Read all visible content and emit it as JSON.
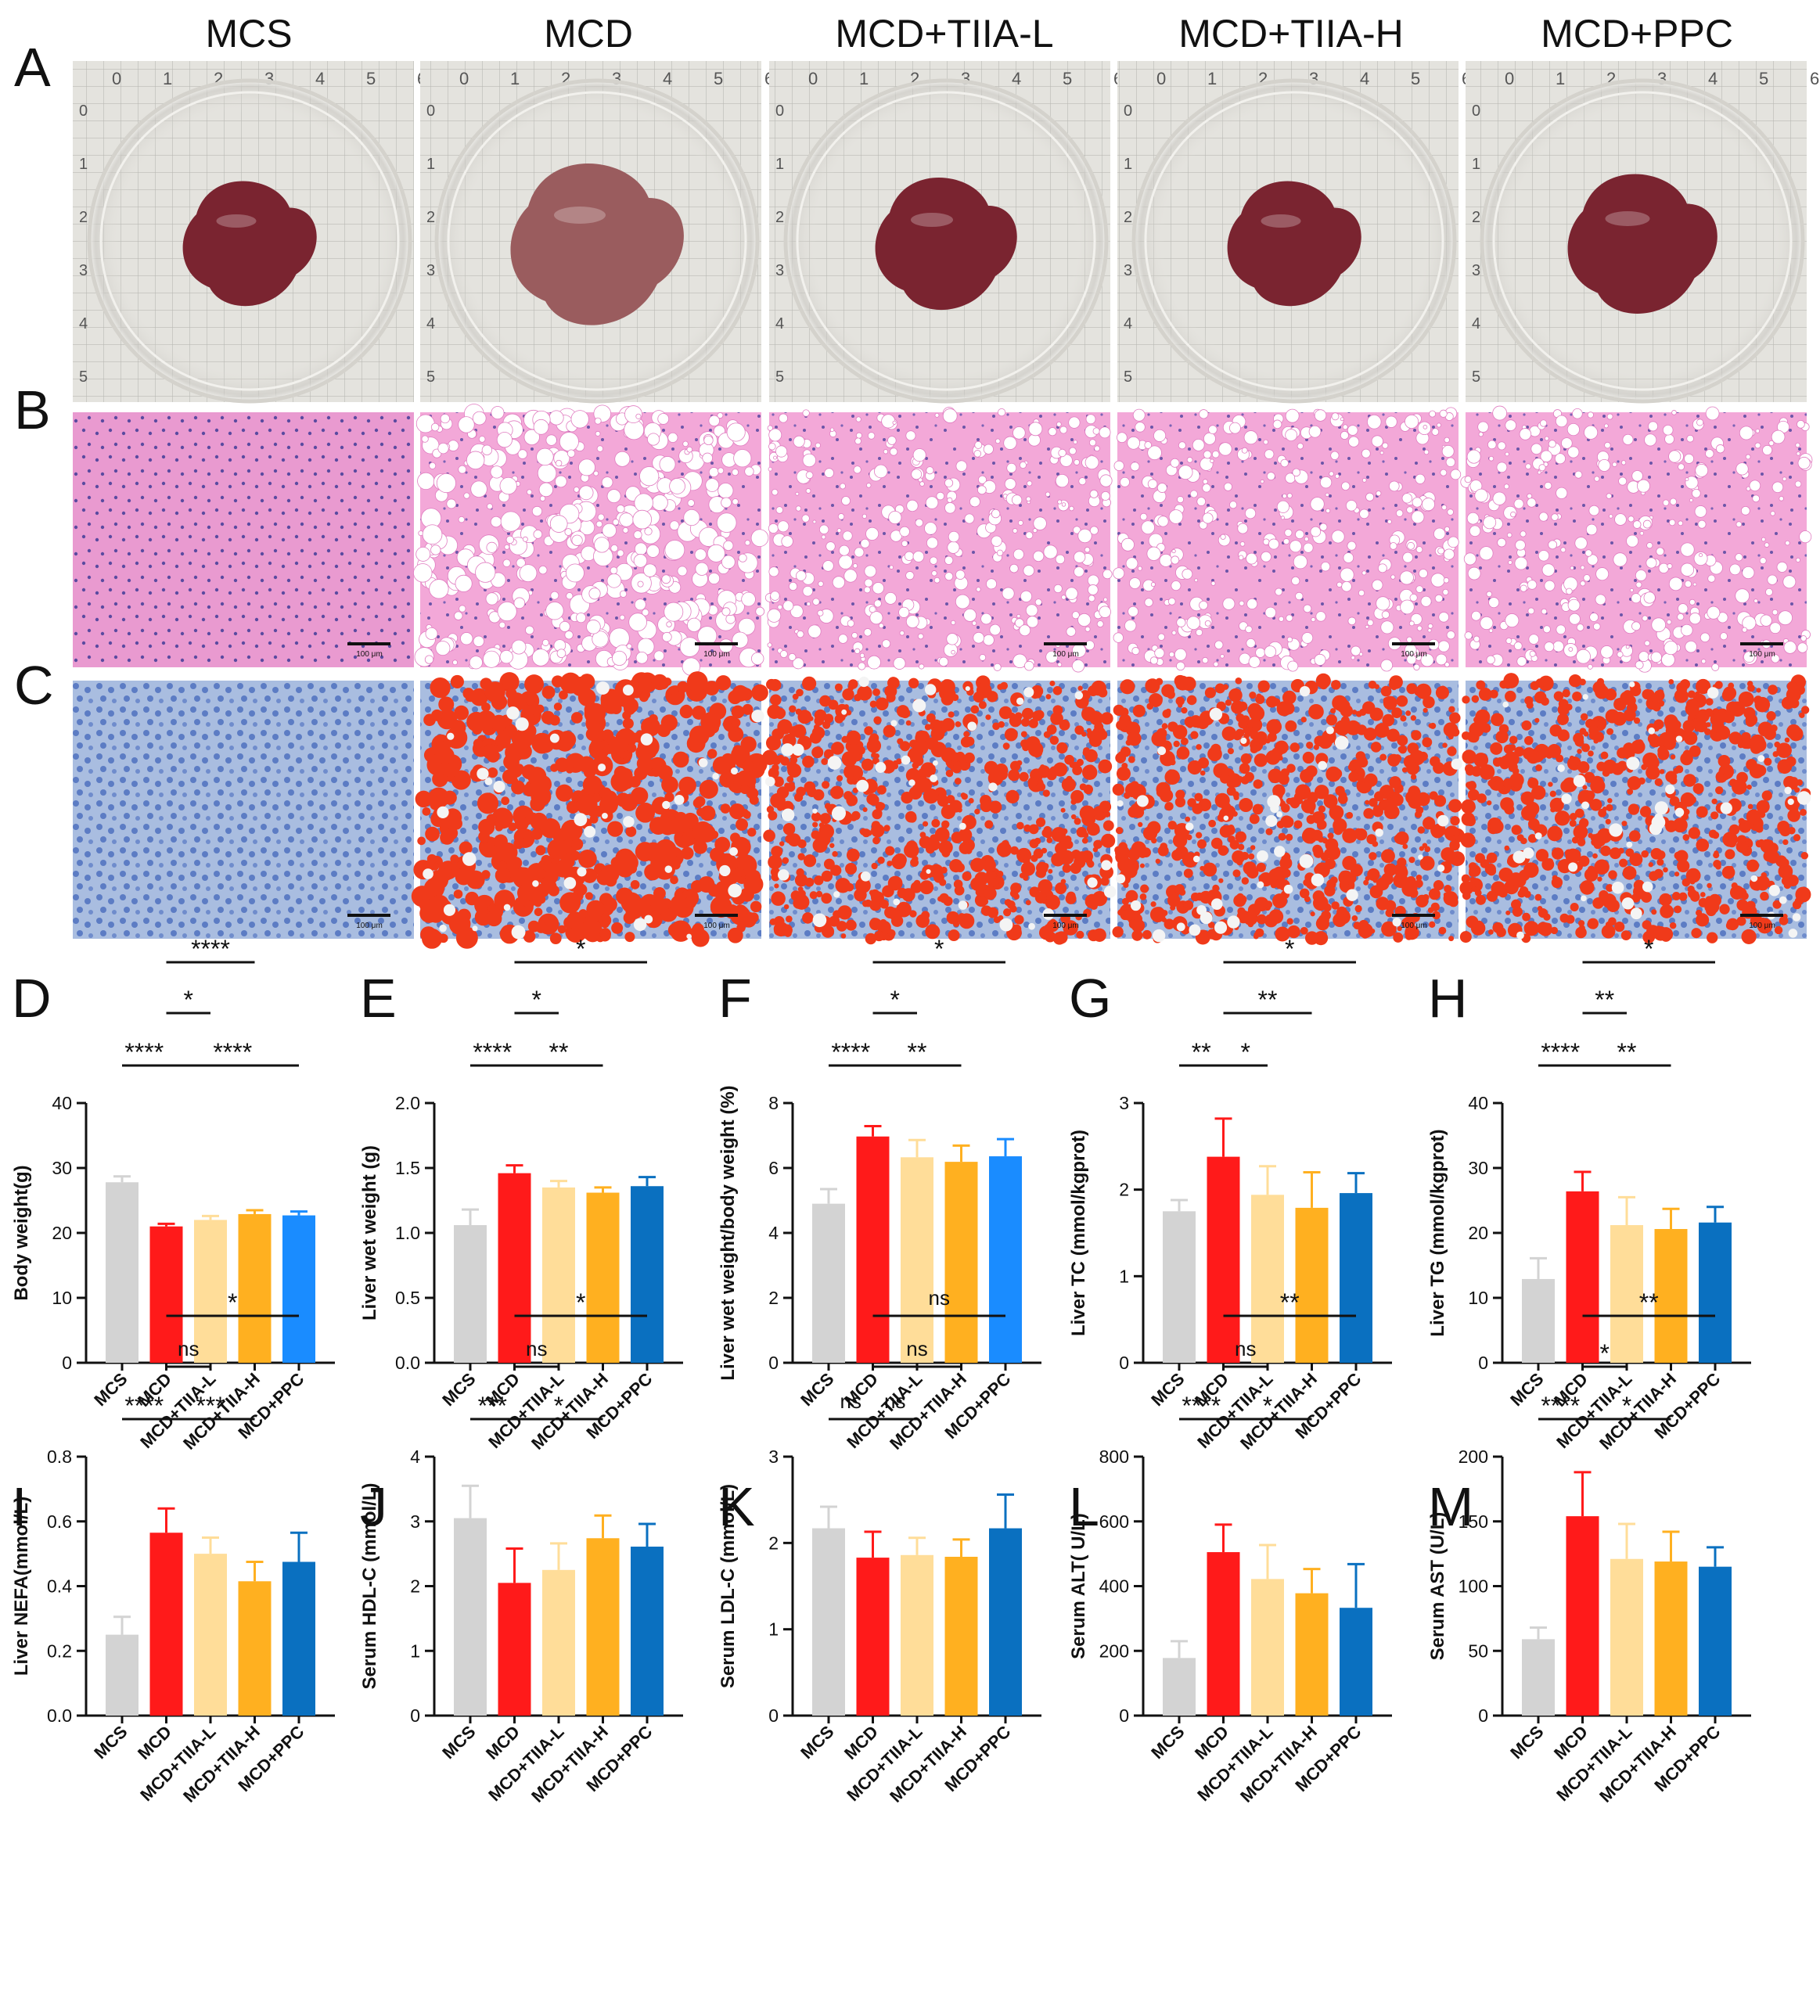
{
  "column_headers": [
    "MCS",
    "MCD",
    "MCD+TIIA-L",
    "MCD+TIIA-H",
    "MCD+PPC"
  ],
  "panel_letters": {
    "A": "A",
    "B": "B",
    "C": "C"
  },
  "ruler_numbers": [
    "0",
    "1",
    "2",
    "3",
    "4",
    "5",
    "6"
  ],
  "scale_bar_label": "100 μm",
  "colors": {
    "MCS": "#d3d3d3",
    "MCD": "#ff1a1a",
    "TIIA_L": "#ffdd99",
    "TIIA_H": "#ffb020",
    "PPC_bright": "#1a8cff",
    "PPC_dark": "#0a70c0",
    "he_bg": "#f2a6d6",
    "oro_bg": "#9db1d8",
    "oro_red": "#f03a1a",
    "liver": "#7a2430",
    "liver_pale": "#9a5c5e"
  },
  "chart_data": [
    {
      "letter": "D",
      "type": "bar",
      "categories": [
        "MCS",
        "MCD",
        "MCD+TIIA-L",
        "MCD+TIIA-H",
        "MCD+PPC"
      ],
      "values": [
        27.8,
        21.0,
        22.0,
        22.9,
        22.7
      ],
      "errors": [
        0.9,
        0.4,
        0.6,
        0.6,
        0.6
      ],
      "ylabel": "Body weight(g)",
      "ylim": [
        0,
        40
      ],
      "yticks": [
        "0",
        "10",
        "20",
        "30",
        "40"
      ],
      "colors": [
        "#d3d3d3",
        "#ff1a1a",
        "#ffdd99",
        "#ffb020",
        "#1a8cff"
      ],
      "sig": [
        {
          "from": 0,
          "to": 1,
          "label": "****",
          "level": 0
        },
        {
          "from": 1,
          "to": 2,
          "label": "*",
          "level": 1
        },
        {
          "from": 1,
          "to": 3,
          "label": "****",
          "level": 2
        },
        {
          "from": 1,
          "to": 4,
          "label": "****",
          "level": 0
        }
      ]
    },
    {
      "letter": "E",
      "type": "bar",
      "categories": [
        "MCS",
        "MCD",
        "MCD+TIIA-L",
        "MCD+TIIA-H",
        "MCD+PPC"
      ],
      "values": [
        1.06,
        1.46,
        1.35,
        1.31,
        1.36
      ],
      "errors": [
        0.12,
        0.06,
        0.05,
        0.04,
        0.07
      ],
      "ylabel": "Liver wet weight (g)",
      "ylim": [
        0,
        2
      ],
      "yticks": [
        "0.0",
        "0.5",
        "1.0",
        "1.5",
        "2.0"
      ],
      "colors": [
        "#d3d3d3",
        "#ff1a1a",
        "#ffdd99",
        "#ffb020",
        "#0a70c0"
      ],
      "sig": [
        {
          "from": 0,
          "to": 1,
          "label": "****",
          "level": 0
        },
        {
          "from": 1,
          "to": 3,
          "label": "**",
          "level": 0
        },
        {
          "from": 1,
          "to": 2,
          "label": "*",
          "level": 1
        },
        {
          "from": 1,
          "to": 4,
          "label": "*",
          "level": 2
        }
      ]
    },
    {
      "letter": "F",
      "type": "bar",
      "categories": [
        "MCS",
        "MCD",
        "MCD+TIIA-L",
        "MCD+TIIA-H",
        "MCD+PPC"
      ],
      "values": [
        4.9,
        6.97,
        6.33,
        6.19,
        6.36
      ],
      "errors": [
        0.45,
        0.32,
        0.53,
        0.5,
        0.53
      ],
      "ylabel": "Liver wet weight/body weight (%)",
      "ylim": [
        0,
        8
      ],
      "yticks": [
        "0",
        "2",
        "4",
        "6",
        "8"
      ],
      "colors": [
        "#d3d3d3",
        "#ff1a1a",
        "#ffdd99",
        "#ffb020",
        "#1a8cff"
      ],
      "sig": [
        {
          "from": 0,
          "to": 1,
          "label": "****",
          "level": 0
        },
        {
          "from": 1,
          "to": 3,
          "label": "**",
          "level": 0
        },
        {
          "from": 1,
          "to": 2,
          "label": "*",
          "level": 1
        },
        {
          "from": 1,
          "to": 4,
          "label": "*",
          "level": 2
        }
      ]
    },
    {
      "letter": "G",
      "type": "bar",
      "categories": [
        "MCS",
        "MCD",
        "MCD+TIIA-L",
        "MCD+TIIA-H",
        "MCD+PPC"
      ],
      "values": [
        1.75,
        2.38,
        1.94,
        1.79,
        1.96
      ],
      "errors": [
        0.13,
        0.44,
        0.33,
        0.41,
        0.23
      ],
      "ylabel": "Liver TC (mmol/kgprot)",
      "ylim": [
        0,
        3
      ],
      "yticks": [
        "0",
        "1",
        "2",
        "3"
      ],
      "colors": [
        "#d3d3d3",
        "#ff1a1a",
        "#ffdd99",
        "#ffb020",
        "#0a70c0"
      ],
      "sig": [
        {
          "from": 0,
          "to": 1,
          "label": "**",
          "level": 0
        },
        {
          "from": 1,
          "to": 2,
          "label": "*",
          "level": 0
        },
        {
          "from": 1,
          "to": 3,
          "label": "**",
          "level": 1
        },
        {
          "from": 1,
          "to": 4,
          "label": "*",
          "level": 2
        }
      ]
    },
    {
      "letter": "H",
      "type": "bar",
      "categories": [
        "MCS",
        "MCD",
        "MCD+TIIA-L",
        "MCD+TIIA-H",
        "MCD+PPC"
      ],
      "values": [
        12.9,
        26.4,
        21.2,
        20.6,
        21.6
      ],
      "errors": [
        3.2,
        3.0,
        4.3,
        3.1,
        2.4
      ],
      "ylabel": "Liver TG (mmol/kgprot)",
      "ylim": [
        0,
        40
      ],
      "yticks": [
        "0",
        "10",
        "20",
        "30",
        "40"
      ],
      "colors": [
        "#d3d3d3",
        "#ff1a1a",
        "#ffdd99",
        "#ffb020",
        "#0a70c0"
      ],
      "sig": [
        {
          "from": 0,
          "to": 1,
          "label": "****",
          "level": 0
        },
        {
          "from": 1,
          "to": 3,
          "label": "**",
          "level": 0
        },
        {
          "from": 1,
          "to": 2,
          "label": "**",
          "level": 1
        },
        {
          "from": 1,
          "to": 4,
          "label": "*",
          "level": 2
        }
      ]
    },
    {
      "letter": "I",
      "type": "bar",
      "categories": [
        "MCS",
        "MCD",
        "MCD+TIIA-L",
        "MCD+TIIA-H",
        "MCD+PPC"
      ],
      "values": [
        0.25,
        0.565,
        0.5,
        0.415,
        0.475
      ],
      "errors": [
        0.055,
        0.075,
        0.05,
        0.06,
        0.09
      ],
      "ylabel": "Liver NEFA(mmol/L)",
      "ylim": [
        0,
        0.8
      ],
      "yticks": [
        "0.0",
        "0.2",
        "0.4",
        "0.6",
        "0.8"
      ],
      "colors": [
        "#d3d3d3",
        "#ff1a1a",
        "#ffdd99",
        "#ffb020",
        "#0a70c0"
      ],
      "sig": [
        {
          "from": 0,
          "to": 1,
          "label": "****",
          "level": 0
        },
        {
          "from": 1,
          "to": 3,
          "label": "***",
          "level": 0
        },
        {
          "from": 1,
          "to": 2,
          "label": "ns",
          "level": 1
        },
        {
          "from": 1,
          "to": 4,
          "label": "*",
          "level": 2
        }
      ]
    },
    {
      "letter": "J",
      "type": "bar",
      "categories": [
        "MCS",
        "MCD",
        "MCD+TIIA-L",
        "MCD+TIIA-H",
        "MCD+PPC"
      ],
      "values": [
        3.05,
        2.05,
        2.25,
        2.74,
        2.61
      ],
      "errors": [
        0.5,
        0.53,
        0.41,
        0.35,
        0.35
      ],
      "ylabel": "Serum HDL-C (mmol/L)",
      "ylim": [
        0,
        4
      ],
      "yticks": [
        "0",
        "1",
        "2",
        "3",
        "4"
      ],
      "colors": [
        "#d3d3d3",
        "#ff1a1a",
        "#ffdd99",
        "#ffb020",
        "#0a70c0"
      ],
      "sig": [
        {
          "from": 0,
          "to": 1,
          "label": "***",
          "level": 0
        },
        {
          "from": 1,
          "to": 3,
          "label": "*",
          "level": 0
        },
        {
          "from": 1,
          "to": 2,
          "label": "ns",
          "level": 1
        },
        {
          "from": 1,
          "to": 4,
          "label": "*",
          "level": 2
        }
      ]
    },
    {
      "letter": "K",
      "type": "bar",
      "categories": [
        "MCS",
        "MCD",
        "MCD+TIIA-L",
        "MCD+TIIA-H",
        "MCD+PPC"
      ],
      "values": [
        2.17,
        1.83,
        1.86,
        1.84,
        2.17
      ],
      "errors": [
        0.25,
        0.3,
        0.2,
        0.2,
        0.39
      ],
      "ylabel": "Serum LDL-C (mmol/L)",
      "ylim": [
        0,
        3
      ],
      "yticks": [
        "0",
        "1",
        "2",
        "3"
      ],
      "colors": [
        "#d3d3d3",
        "#ff1a1a",
        "#ffdd99",
        "#ffb020",
        "#0a70c0"
      ],
      "sig": [
        {
          "from": 0,
          "to": 1,
          "label": "ns",
          "level": 0
        },
        {
          "from": 1,
          "to": 2,
          "label": "ns",
          "level": 0
        },
        {
          "from": 1,
          "to": 3,
          "label": "ns",
          "level": 1
        },
        {
          "from": 1,
          "to": 4,
          "label": "ns",
          "level": 2
        }
      ]
    },
    {
      "letter": "L",
      "type": "bar",
      "categories": [
        "MCS",
        "MCD",
        "MCD+TIIA-L",
        "MCD+TIIA-H",
        "MCD+PPC"
      ],
      "values": [
        178,
        505,
        422,
        378,
        333
      ],
      "errors": [
        52,
        85,
        105,
        75,
        135
      ],
      "ylabel": "Serum ALT( U/L)",
      "ylim": [
        0,
        800
      ],
      "yticks": [
        "0",
        "200",
        "400",
        "600",
        "800"
      ],
      "colors": [
        "#d3d3d3",
        "#ff1a1a",
        "#ffdd99",
        "#ffb020",
        "#0a70c0"
      ],
      "sig": [
        {
          "from": 0,
          "to": 1,
          "label": "****",
          "level": 0
        },
        {
          "from": 1,
          "to": 3,
          "label": "*",
          "level": 0
        },
        {
          "from": 1,
          "to": 2,
          "label": "ns",
          "level": 1
        },
        {
          "from": 1,
          "to": 4,
          "label": "**",
          "level": 2
        }
      ]
    },
    {
      "letter": "M",
      "type": "bar",
      "categories": [
        "MCS",
        "MCD",
        "MCD+TIIA-L",
        "MCD+TIIA-H",
        "MCD+PPC"
      ],
      "values": [
        59,
        154,
        121,
        119,
        115
      ],
      "errors": [
        9,
        34,
        27,
        23,
        15
      ],
      "ylabel": "Serum AST (U/L)",
      "ylim": [
        0,
        200
      ],
      "yticks": [
        "0",
        "50",
        "100",
        "150",
        "200"
      ],
      "colors": [
        "#d3d3d3",
        "#ff1a1a",
        "#ffdd99",
        "#ffb020",
        "#0a70c0"
      ],
      "sig": [
        {
          "from": 0,
          "to": 1,
          "label": "****",
          "level": 0
        },
        {
          "from": 1,
          "to": 3,
          "label": "*",
          "level": 0
        },
        {
          "from": 1,
          "to": 2,
          "label": "*",
          "level": 1
        },
        {
          "from": 1,
          "to": 4,
          "label": "**",
          "level": 2
        }
      ]
    }
  ]
}
